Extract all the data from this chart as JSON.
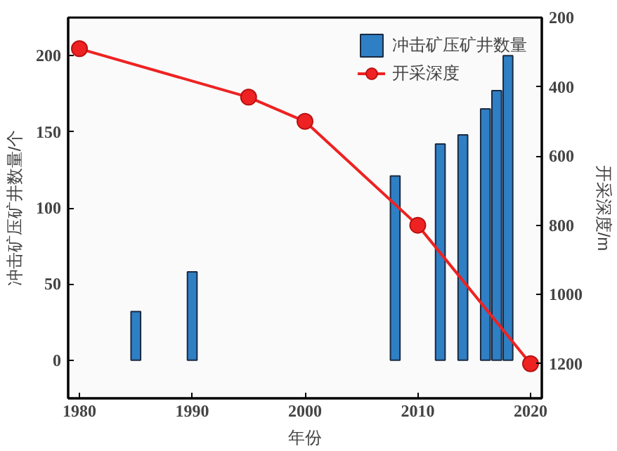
{
  "chart_data": {
    "type": "bar",
    "xlabel": "年份",
    "ylabel": "冲击矿压矿井数量/个",
    "y2label": "开采深度/m",
    "xlim": [
      1979,
      2021
    ],
    "xticks": [
      1980,
      1990,
      2000,
      2010,
      2020
    ],
    "ylim": [
      -25,
      225
    ],
    "yticks": [
      0,
      50,
      100,
      150,
      200
    ],
    "y2lim": [
      1300,
      200
    ],
    "y2ticks": [
      200,
      400,
      600,
      800,
      1000,
      1200
    ],
    "series": [
      {
        "name": "冲击矿压矿井数量",
        "color": "#2f7fc4",
        "x": [
          1985,
          1990,
          2008,
          2012,
          2014,
          2016,
          2017,
          2018
        ],
        "values": [
          32,
          58,
          121,
          142,
          148,
          165,
          177,
          200
        ]
      },
      {
        "name": "开采深度",
        "type": "line",
        "axis": "y2",
        "color": "#ee2222",
        "x": [
          1980,
          1995,
          2000,
          2010,
          2020
        ],
        "values": [
          290,
          430,
          500,
          800,
          1200
        ]
      }
    ],
    "marker": "circle",
    "legend": "top right",
    "grid": false
  }
}
